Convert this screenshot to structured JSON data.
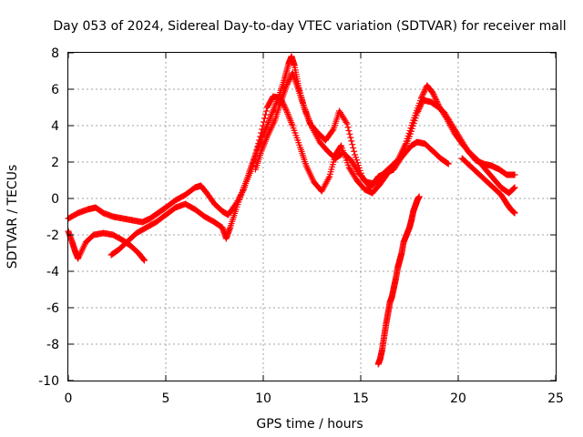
{
  "chart_data": {
    "type": "scatter",
    "title": "Day 053 of 2024, Sidereal Day-to-day VTEC variation (SDTVAR) for receiver mall",
    "xlabel": "GPS time / hours",
    "ylabel": "SDTVAR / TECUs",
    "xlim": [
      0,
      25
    ],
    "ylim": [
      -10,
      8
    ],
    "xticks": [
      0,
      5,
      10,
      15,
      20,
      25
    ],
    "yticks": [
      -10,
      -8,
      -6,
      -4,
      -2,
      0,
      2,
      4,
      6,
      8
    ],
    "grid": true,
    "marker": "plus",
    "color": "#ff0000",
    "series": [
      {
        "name": "track-1",
        "points": [
          [
            0.0,
            -1.1
          ],
          [
            0.5,
            -0.8
          ],
          [
            1.0,
            -0.6
          ],
          [
            1.4,
            -0.5
          ],
          [
            1.8,
            -0.8
          ],
          [
            2.3,
            -1.0
          ],
          [
            2.8,
            -1.1
          ],
          [
            3.3,
            -1.2
          ],
          [
            3.8,
            -1.3
          ],
          [
            4.2,
            -1.1
          ],
          [
            4.6,
            -0.8
          ],
          [
            5.0,
            -0.5
          ],
          [
            5.5,
            -0.1
          ],
          [
            6.0,
            0.2
          ],
          [
            6.5,
            0.6
          ],
          [
            6.8,
            0.7
          ],
          [
            7.1,
            0.3
          ],
          [
            7.5,
            -0.3
          ],
          [
            7.9,
            -0.7
          ],
          [
            8.2,
            -0.9
          ],
          [
            8.6,
            -0.3
          ],
          [
            9.0,
            0.5
          ],
          [
            9.3,
            1.5
          ],
          [
            9.6,
            2.4
          ],
          [
            9.9,
            3.3
          ],
          [
            10.2,
            4.0
          ],
          [
            10.5,
            4.8
          ],
          [
            10.8,
            5.6
          ],
          [
            11.1,
            6.6
          ],
          [
            11.3,
            7.4
          ],
          [
            11.45,
            7.8
          ],
          [
            11.6,
            7.3
          ],
          [
            11.8,
            6.2
          ],
          [
            12.1,
            5.0
          ],
          [
            12.5,
            3.9
          ],
          [
            12.9,
            3.1
          ],
          [
            13.3,
            2.6
          ],
          [
            13.7,
            2.2
          ],
          [
            14.1,
            2.5
          ],
          [
            14.5,
            2.1
          ],
          [
            14.9,
            1.4
          ],
          [
            15.3,
            0.9
          ],
          [
            15.7,
            0.8
          ],
          [
            16.1,
            1.3
          ],
          [
            16.5,
            1.7
          ],
          [
            16.9,
            2.1
          ],
          [
            17.3,
            3.0
          ],
          [
            17.7,
            4.3
          ],
          [
            18.1,
            5.5
          ],
          [
            18.4,
            6.2
          ],
          [
            18.7,
            5.8
          ],
          [
            19.0,
            5.1
          ],
          [
            19.4,
            4.4
          ],
          [
            19.8,
            3.6
          ],
          [
            20.2,
            3.0
          ],
          [
            20.6,
            2.5
          ],
          [
            21.0,
            2.1
          ],
          [
            21.4,
            1.6
          ],
          [
            21.8,
            1.1
          ],
          [
            22.2,
            0.6
          ],
          [
            22.6,
            0.3
          ],
          [
            22.9,
            0.6
          ]
        ]
      },
      {
        "name": "track-2",
        "points": [
          [
            0.0,
            -1.8
          ],
          [
            0.2,
            -2.4
          ],
          [
            0.35,
            -2.9
          ],
          [
            0.5,
            -3.3
          ],
          [
            0.9,
            -2.4
          ],
          [
            1.3,
            -2.0
          ],
          [
            1.8,
            -1.9
          ],
          [
            2.3,
            -2.0
          ],
          [
            2.8,
            -2.3
          ],
          [
            3.2,
            -2.6
          ],
          [
            3.6,
            -3.0
          ],
          [
            3.9,
            -3.4
          ]
        ]
      },
      {
        "name": "track-3",
        "points": [
          [
            2.2,
            -3.1
          ],
          [
            2.6,
            -2.8
          ],
          [
            3.0,
            -2.4
          ],
          [
            3.5,
            -1.9
          ],
          [
            4.0,
            -1.6
          ],
          [
            4.5,
            -1.3
          ],
          [
            5.0,
            -0.9
          ],
          [
            5.5,
            -0.5
          ],
          [
            6.0,
            -0.3
          ],
          [
            6.5,
            -0.6
          ],
          [
            7.0,
            -1.0
          ],
          [
            7.5,
            -1.3
          ],
          [
            7.9,
            -1.6
          ],
          [
            8.1,
            -2.2
          ],
          [
            8.3,
            -1.6
          ],
          [
            8.6,
            -0.6
          ],
          [
            9.0,
            0.6
          ],
          [
            9.4,
            1.6
          ],
          [
            9.8,
            3.2
          ],
          [
            10.2,
            5.0
          ],
          [
            10.5,
            5.6
          ],
          [
            10.9,
            5.5
          ],
          [
            11.2,
            4.8
          ],
          [
            11.5,
            4.0
          ],
          [
            11.9,
            2.8
          ],
          [
            12.2,
            1.8
          ],
          [
            12.6,
            0.9
          ],
          [
            13.0,
            0.4
          ],
          [
            13.4,
            1.2
          ],
          [
            13.7,
            2.4
          ],
          [
            14.0,
            2.9
          ],
          [
            14.4,
            1.7
          ],
          [
            14.8,
            1.0
          ],
          [
            15.2,
            0.5
          ],
          [
            15.6,
            0.3
          ],
          [
            16.0,
            0.8
          ],
          [
            16.4,
            1.4
          ],
          [
            16.8,
            1.9
          ],
          [
            17.2,
            2.4
          ],
          [
            17.6,
            2.9
          ],
          [
            17.9,
            3.1
          ],
          [
            18.3,
            3.0
          ],
          [
            18.7,
            2.6
          ],
          [
            19.1,
            2.2
          ],
          [
            19.5,
            1.9
          ]
        ]
      },
      {
        "name": "track-4",
        "points": [
          [
            9.6,
            1.6
          ],
          [
            9.9,
            2.6
          ],
          [
            10.2,
            3.4
          ],
          [
            10.6,
            4.3
          ],
          [
            10.9,
            5.3
          ],
          [
            11.2,
            6.2
          ],
          [
            11.5,
            6.9
          ],
          [
            11.8,
            6.0
          ],
          [
            12.1,
            5.0
          ],
          [
            12.4,
            4.1
          ],
          [
            12.8,
            3.6
          ],
          [
            13.2,
            3.2
          ],
          [
            13.6,
            3.8
          ],
          [
            13.9,
            4.8
          ],
          [
            14.3,
            4.1
          ],
          [
            14.7,
            2.4
          ],
          [
            15.1,
            1.1
          ],
          [
            15.5,
            0.6
          ],
          [
            15.9,
            1.2
          ],
          [
            16.3,
            1.4
          ],
          [
            16.7,
            1.6
          ],
          [
            17.1,
            2.3
          ],
          [
            17.5,
            3.4
          ],
          [
            17.9,
            4.7
          ],
          [
            18.2,
            5.4
          ],
          [
            18.6,
            5.3
          ],
          [
            19.0,
            5.0
          ],
          [
            19.3,
            4.7
          ],
          [
            19.7,
            4.0
          ],
          [
            20.1,
            3.3
          ],
          [
            20.5,
            2.6
          ],
          [
            20.9,
            2.1
          ],
          [
            21.3,
            1.9
          ],
          [
            21.7,
            1.8
          ],
          [
            22.1,
            1.6
          ],
          [
            22.5,
            1.3
          ],
          [
            22.9,
            1.3
          ]
        ]
      },
      {
        "name": "track-5",
        "points": [
          [
            15.9,
            -9.1
          ],
          [
            16.0,
            -8.8
          ],
          [
            16.1,
            -8.3
          ],
          [
            16.2,
            -7.6
          ],
          [
            16.3,
            -6.9
          ],
          [
            16.4,
            -6.3
          ],
          [
            16.5,
            -5.7
          ],
          [
            16.6,
            -5.4
          ],
          [
            16.7,
            -4.9
          ],
          [
            16.8,
            -4.4
          ],
          [
            16.9,
            -3.8
          ],
          [
            17.0,
            -3.4
          ],
          [
            17.1,
            -3.0
          ],
          [
            17.2,
            -2.4
          ],
          [
            17.35,
            -2.0
          ],
          [
            17.5,
            -1.6
          ],
          [
            17.6,
            -1.2
          ],
          [
            17.7,
            -0.7
          ],
          [
            17.8,
            -0.4
          ],
          [
            17.9,
            -0.1
          ],
          [
            18.0,
            0.1
          ]
        ]
      },
      {
        "name": "track-6",
        "points": [
          [
            20.2,
            2.2
          ],
          [
            20.6,
            1.8
          ],
          [
            21.0,
            1.4
          ],
          [
            21.4,
            1.0
          ],
          [
            21.8,
            0.6
          ],
          [
            22.2,
            0.2
          ],
          [
            22.5,
            -0.3
          ],
          [
            22.7,
            -0.6
          ],
          [
            22.9,
            -0.8
          ]
        ]
      }
    ]
  }
}
